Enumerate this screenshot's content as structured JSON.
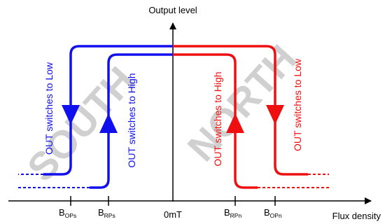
{
  "axes": {
    "y_label": "Output level",
    "x_label": "Flux density",
    "origin_label": "0mT"
  },
  "thresholds": [
    {
      "id": "bops",
      "main": "B",
      "sub": "OPs"
    },
    {
      "id": "brps",
      "main": "B",
      "sub": "RPs"
    },
    {
      "id": "brpn",
      "main": "B",
      "sub": "RPn"
    },
    {
      "id": "bopn",
      "main": "B",
      "sub": "OPn"
    }
  ],
  "regions": {
    "south": "SOUTH",
    "north": "NORTH"
  },
  "annotations": {
    "south_low": "OUT switches to Low",
    "south_high": "OUT switches to High",
    "north_high": "OUT switches to High",
    "north_low": "OUT switches to Low"
  },
  "colors": {
    "south": "#1010ee",
    "north": "#ee1010",
    "axis": "#000000",
    "watermark": "#c8c8c8"
  }
}
